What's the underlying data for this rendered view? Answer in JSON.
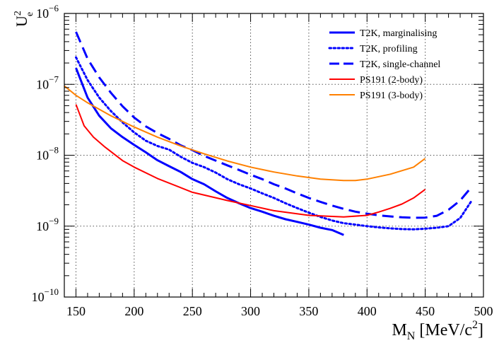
{
  "chart_data": {
    "type": "line",
    "ylabel": {
      "main": "U",
      "sup": "2",
      "sub": "e"
    },
    "xlabel": {
      "main": "M",
      "sub": "N",
      "unit_prefix": " [MeV/c",
      "unit_sup": "2",
      "unit_suffix": "]"
    },
    "xlim": [
      140,
      500
    ],
    "ylim": [
      1e-10,
      1e-06
    ],
    "yscale": "log",
    "grid": true,
    "legend_position": "top-right",
    "x_ticks": [
      "150",
      "200",
      "250",
      "300",
      "350",
      "400",
      "450",
      "500"
    ],
    "y_ticks": [
      {
        "base": "10",
        "exp": "−10"
      },
      {
        "base": "10",
        "exp": "−9"
      },
      {
        "base": "10",
        "exp": "−8"
      },
      {
        "base": "10",
        "exp": "−7"
      },
      {
        "base": "10",
        "exp": "−6"
      }
    ],
    "series": [
      {
        "name": "T2K, marginalising",
        "color": "#0000ff",
        "style": "solid",
        "x": [
          150,
          160,
          170,
          180,
          190,
          200,
          210,
          220,
          230,
          240,
          250,
          260,
          270,
          280,
          290,
          300,
          310,
          320,
          330,
          340,
          350,
          360,
          370,
          380
        ],
        "y": [
          1.7e-07,
          6.5e-08,
          3.6e-08,
          2.4e-08,
          1.8e-08,
          1.4e-08,
          1.1e-08,
          8.5e-09,
          7e-09,
          5.8e-09,
          4.6e-09,
          3.9e-09,
          3.1e-09,
          2.5e-09,
          2.1e-09,
          1.8e-09,
          1.6e-09,
          1.4e-09,
          1.25e-09,
          1.15e-09,
          1.05e-09,
          9.5e-10,
          8.8e-10,
          7.5e-10
        ]
      },
      {
        "name": "T2K, profiling",
        "color": "#0000ff",
        "style": "dotted",
        "x": [
          150,
          160,
          170,
          180,
          190,
          200,
          210,
          220,
          230,
          240,
          250,
          260,
          270,
          280,
          290,
          300,
          310,
          320,
          330,
          340,
          350,
          360,
          370,
          380,
          390,
          400,
          410,
          420,
          430,
          440,
          450,
          460,
          470,
          480,
          490
        ],
        "y": [
          2.4e-07,
          1.15e-07,
          6.5e-08,
          4.2e-08,
          2.9e-08,
          2.1e-08,
          1.6e-08,
          1.35e-08,
          1.2e-08,
          9.5e-09,
          7.8e-09,
          6.8e-09,
          5.7e-09,
          4.6e-09,
          3.9e-09,
          3.4e-09,
          2.9e-09,
          2.5e-09,
          2.1e-09,
          1.8e-09,
          1.55e-09,
          1.35e-09,
          1.2e-09,
          1.1e-09,
          1.05e-09,
          1e-09,
          9.6e-10,
          9.3e-10,
          9.1e-10,
          9e-10,
          9.2e-10,
          9.5e-10,
          1e-09,
          1.3e-09,
          2.3e-09
        ]
      },
      {
        "name": "T2K, single-channel",
        "color": "#0000ff",
        "style": "dashed",
        "x": [
          150,
          160,
          170,
          180,
          190,
          200,
          210,
          220,
          230,
          240,
          250,
          260,
          270,
          280,
          290,
          300,
          310,
          320,
          330,
          340,
          350,
          360,
          370,
          380,
          390,
          400,
          410,
          420,
          430,
          440,
          450,
          460,
          470,
          480,
          490
        ],
        "y": [
          5.5e-07,
          2.3e-07,
          1.25e-07,
          7.6e-08,
          4.9e-08,
          3.4e-08,
          2.55e-08,
          2.05e-08,
          1.7e-08,
          1.38e-08,
          1.18e-08,
          9.8e-09,
          8.4e-09,
          7.2e-09,
          6.2e-09,
          5.3e-09,
          4.6e-09,
          3.9e-09,
          3.4e-09,
          2.9e-09,
          2.5e-09,
          2.2e-09,
          1.95e-09,
          1.75e-09,
          1.6e-09,
          1.5e-09,
          1.42e-09,
          1.37e-09,
          1.33e-09,
          1.31e-09,
          1.32e-09,
          1.4e-09,
          1.7e-09,
          2.3e-09,
          3.6e-09
        ]
      },
      {
        "name": "PS191 (2-body)",
        "color": "#ff0000",
        "style": "solid",
        "x": [
          150,
          157,
          165,
          175,
          190,
          200,
          220,
          250,
          280,
          300,
          320,
          350,
          380,
          400,
          410,
          420,
          430,
          440,
          450
        ],
        "y": [
          5.2e-08,
          2.6e-08,
          1.8e-08,
          1.3e-08,
          8.4e-09,
          6.8e-09,
          4.7e-09,
          3e-09,
          2.3e-09,
          1.95e-09,
          1.65e-09,
          1.42e-09,
          1.35e-09,
          1.42e-09,
          1.58e-09,
          1.78e-09,
          2.05e-09,
          2.5e-09,
          3.3e-09
        ]
      },
      {
        "name": "PS191 (3-body)",
        "color": "#ff8000",
        "style": "solid",
        "x": [
          140,
          150,
          160,
          180,
          200,
          220,
          240,
          260,
          280,
          300,
          320,
          340,
          360,
          380,
          390,
          400,
          420,
          440,
          450
        ],
        "y": [
          9.5e-08,
          7e-08,
          5.5e-08,
          3.6e-08,
          2.5e-08,
          1.8e-08,
          1.35e-08,
          1.05e-08,
          8.3e-09,
          6.8e-09,
          5.8e-09,
          5.1e-09,
          4.6e-09,
          4.4e-09,
          4.4e-09,
          4.6e-09,
          5.4e-09,
          6.8e-09,
          9e-09
        ]
      }
    ]
  }
}
